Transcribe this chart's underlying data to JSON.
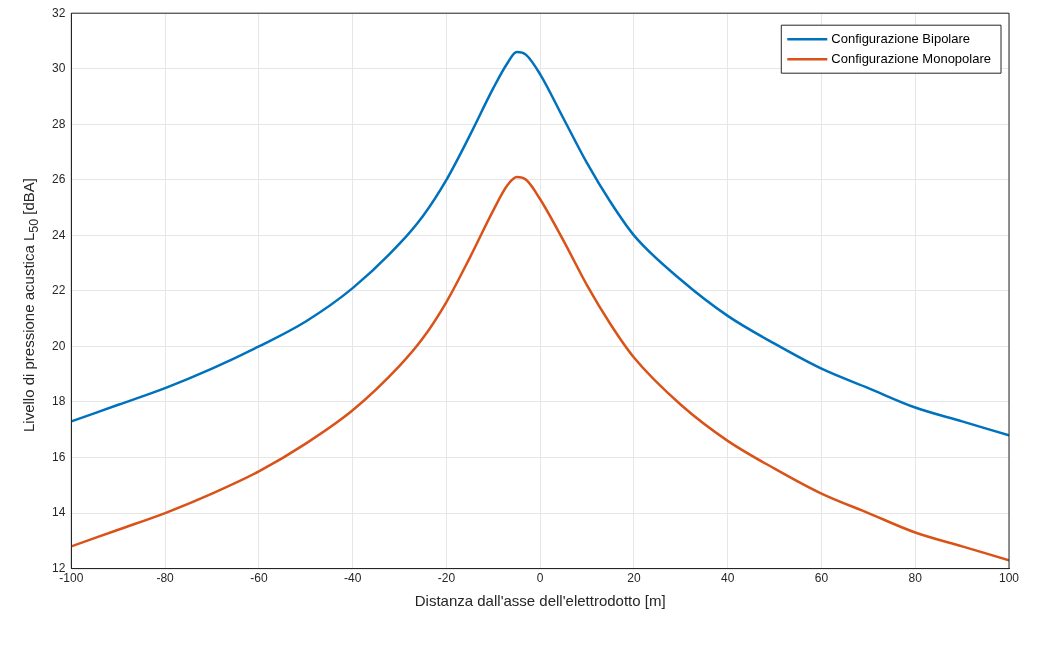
{
  "chart_data": {
    "type": "line",
    "xlabel": "Distanza dall'asse dell'elettrodotto [m]",
    "ylabel": "Livello di pressione acustica L$_{50}$ [dBA]",
    "xlim": [
      -100,
      100
    ],
    "xticks": [
      -100,
      -80,
      -60,
      -40,
      -20,
      0,
      20,
      40,
      60,
      80,
      100
    ],
    "ylim": [
      12,
      32
    ],
    "yticks": [
      12,
      14,
      16,
      18,
      20,
      22,
      24,
      26,
      28,
      30,
      32
    ],
    "grid": true,
    "legend": "top right",
    "marker": "none",
    "line_style": "solid",
    "x": [
      -100,
      -90,
      -80,
      -70,
      -60,
      -50,
      -40,
      -30,
      -25,
      -20,
      -15,
      -10,
      -7,
      -5,
      -3,
      0,
      5,
      10,
      15,
      20,
      30,
      40,
      50,
      60,
      70,
      80,
      90,
      100
    ],
    "series": [
      {
        "name": "Configurazione Bipolare",
        "color": "#0072bd",
        "values": [
          17.3,
          17.9,
          18.5,
          19.2,
          20.0,
          20.9,
          22.1,
          23.7,
          24.7,
          26.0,
          27.6,
          29.3,
          30.2,
          30.6,
          30.5,
          29.8,
          28.2,
          26.6,
          25.2,
          24.0,
          22.4,
          21.1,
          20.1,
          19.2,
          18.5,
          17.8,
          17.3,
          16.8
        ]
      },
      {
        "name": "Configurazione Monopolare",
        "color": "#d95319",
        "values": [
          12.8,
          13.4,
          14.0,
          14.7,
          15.5,
          16.5,
          17.7,
          19.3,
          20.3,
          21.6,
          23.2,
          24.9,
          25.8,
          26.1,
          26.0,
          25.3,
          23.8,
          22.2,
          20.8,
          19.6,
          17.9,
          16.6,
          15.6,
          14.7,
          14.0,
          13.3,
          12.8,
          12.3
        ]
      }
    ]
  }
}
